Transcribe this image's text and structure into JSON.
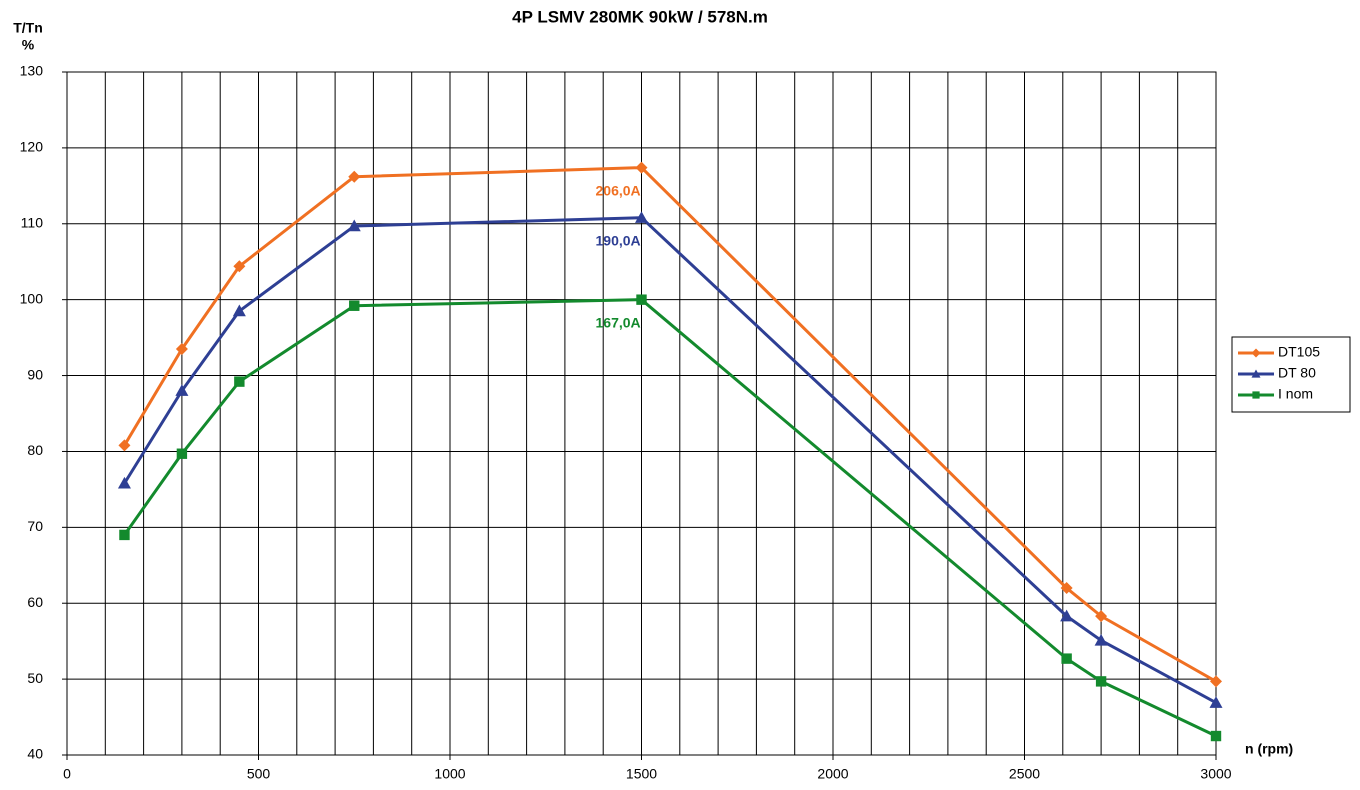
{
  "chart_data": {
    "type": "line",
    "title": "4P LSMV 280MK 90kW / 578N.m",
    "y_label_line1": "T/Tn",
    "y_label_line2": "%",
    "x_label": "n (rpm)",
    "x": [
      150,
      300,
      450,
      750,
      1500,
      2610,
      2700,
      3000
    ],
    "series": [
      {
        "name": "DT105",
        "color": "#f07022",
        "marker": "diamond",
        "annotation": "206,0A",
        "values": [
          80.8,
          93.5,
          104.4,
          116.2,
          117.4,
          62,
          58.3,
          49.7
        ]
      },
      {
        "name": "DT 80",
        "color": "#2e3f94",
        "marker": "triangle",
        "annotation": "190,0A",
        "values": [
          75.8,
          88,
          98.5,
          109.7,
          110.8,
          58.3,
          55.1,
          46.9
        ]
      },
      {
        "name": "I nom",
        "color": "#138a2d",
        "marker": "square",
        "annotation": "167,0A",
        "values": [
          69,
          79.7,
          89.2,
          99.2,
          100,
          52.7,
          49.7,
          42.5
        ]
      }
    ],
    "xlim": [
      0,
      3000
    ],
    "xticks": [
      0,
      500,
      1000,
      1500,
      2000,
      2500,
      3000
    ],
    "xgrid": [
      100,
      200,
      300,
      400,
      500,
      600,
      700,
      800,
      900,
      1000,
      1100,
      1200,
      1300,
      1400,
      1500,
      1600,
      1700,
      1800,
      1900,
      2000,
      2100,
      2200,
      2300,
      2400,
      2500,
      2600,
      2700,
      2800,
      2900,
      3000
    ],
    "ylim": [
      40,
      130
    ],
    "yticks": [
      40,
      50,
      60,
      70,
      80,
      90,
      100,
      110,
      120,
      130
    ],
    "grid": true,
    "legend": "right"
  }
}
